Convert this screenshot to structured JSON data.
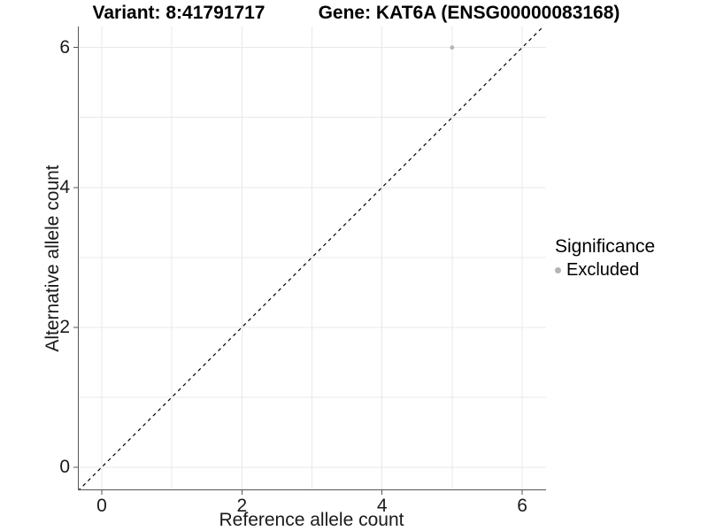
{
  "titles": {
    "variant": "Variant: 8:41791717",
    "gene": "Gene: KAT6A (ENSG00000083168)"
  },
  "chart_data": {
    "type": "scatter",
    "xlabel": "Reference allele count",
    "ylabel": "Alternative allele count",
    "xlim": [
      -0.34,
      6.34
    ],
    "ylim": [
      -0.33,
      6.3
    ],
    "xticks": [
      0,
      2,
      4,
      6
    ],
    "yticks": [
      0,
      2,
      4,
      6
    ],
    "xgrid": [
      0,
      1,
      2,
      3,
      4,
      5,
      6
    ],
    "ygrid": [
      0,
      1,
      2,
      3,
      4,
      5,
      6
    ],
    "grid_on": true,
    "series": [
      {
        "name": "Excluded",
        "color": "#b5b5b5",
        "points": [
          {
            "x": 5,
            "y": 6
          }
        ]
      }
    ],
    "identity_line": {
      "type": "dashed",
      "from": -0.34,
      "to": 6.4
    },
    "legend": {
      "position": "right",
      "title": "Significance",
      "items": [
        {
          "label": "Excluded",
          "color": "#b5b5b5"
        }
      ]
    }
  },
  "colors": {
    "grid": "#e8e8e8",
    "axis": "#555555",
    "tick_text": "#1a1a1a",
    "identity_line": "#000000",
    "point": "#b5b5b5",
    "background": "#ffffff"
  }
}
